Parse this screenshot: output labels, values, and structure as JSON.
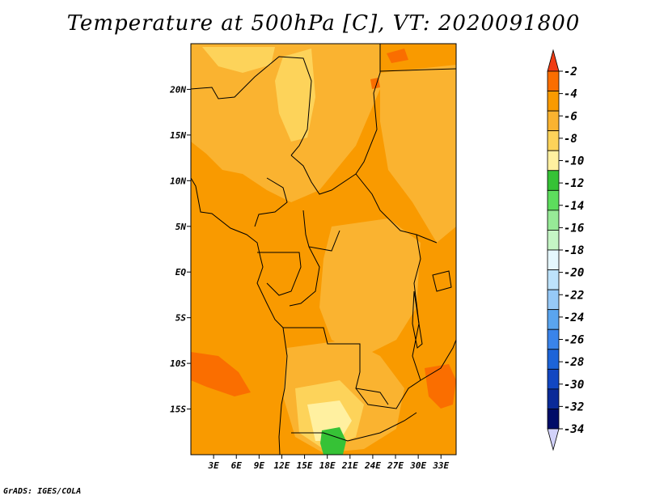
{
  "title": "Temperature at 500hPa [C], VT: 2020091800",
  "credit": "GrADS: IGES/COLA",
  "map": {
    "lat_labels": [
      {
        "label": "20N",
        "value": 20
      },
      {
        "label": "15N",
        "value": 15
      },
      {
        "label": "10N",
        "value": 10
      },
      {
        "label": "5N",
        "value": 5
      },
      {
        "label": "EQ",
        "value": 0
      },
      {
        "label": "5S",
        "value": -5
      },
      {
        "label": "10S",
        "value": -10
      },
      {
        "label": "15S",
        "value": -15
      }
    ],
    "lon_labels": [
      {
        "label": "3E",
        "value": 3
      },
      {
        "label": "6E",
        "value": 6
      },
      {
        "label": "9E",
        "value": 9
      },
      {
        "label": "12E",
        "value": 12
      },
      {
        "label": "15E",
        "value": 15
      },
      {
        "label": "18E",
        "value": 18
      },
      {
        "label": "21E",
        "value": 21
      },
      {
        "label": "24E",
        "value": 24
      },
      {
        "label": "27E",
        "value": 27
      },
      {
        "label": "30E",
        "value": 30
      },
      {
        "label": "33E",
        "value": 33
      }
    ],
    "lon_range": [
      0,
      35
    ],
    "lat_range": [
      -20,
      25
    ]
  },
  "colorbar": {
    "labels": [
      "-2",
      "-4",
      "-6",
      "-8",
      "-10",
      "-12",
      "-14",
      "-16",
      "-18",
      "-20",
      "-22",
      "-24",
      "-26",
      "-28",
      "-30",
      "-32",
      "-34"
    ],
    "colors": [
      "#f03c14",
      "#fa6e00",
      "#f99a00",
      "#fab330",
      "#fdd35a",
      "#fff0a0",
      "#36c236",
      "#5ddd5d",
      "#97ea97",
      "#c5f5c5",
      "#e5f7fd",
      "#bde2fb",
      "#96c9f7",
      "#5aa5ef",
      "#3a84ea",
      "#1d64d8",
      "#1247c2",
      "#0a2a98",
      "#000c68",
      "#d2d2fa"
    ]
  },
  "palette": {
    "base": "#f99a00",
    "warm": "#fa6e00",
    "light": "#fab330",
    "pale": "#fdd35a",
    "cool_green": "#36c236"
  }
}
